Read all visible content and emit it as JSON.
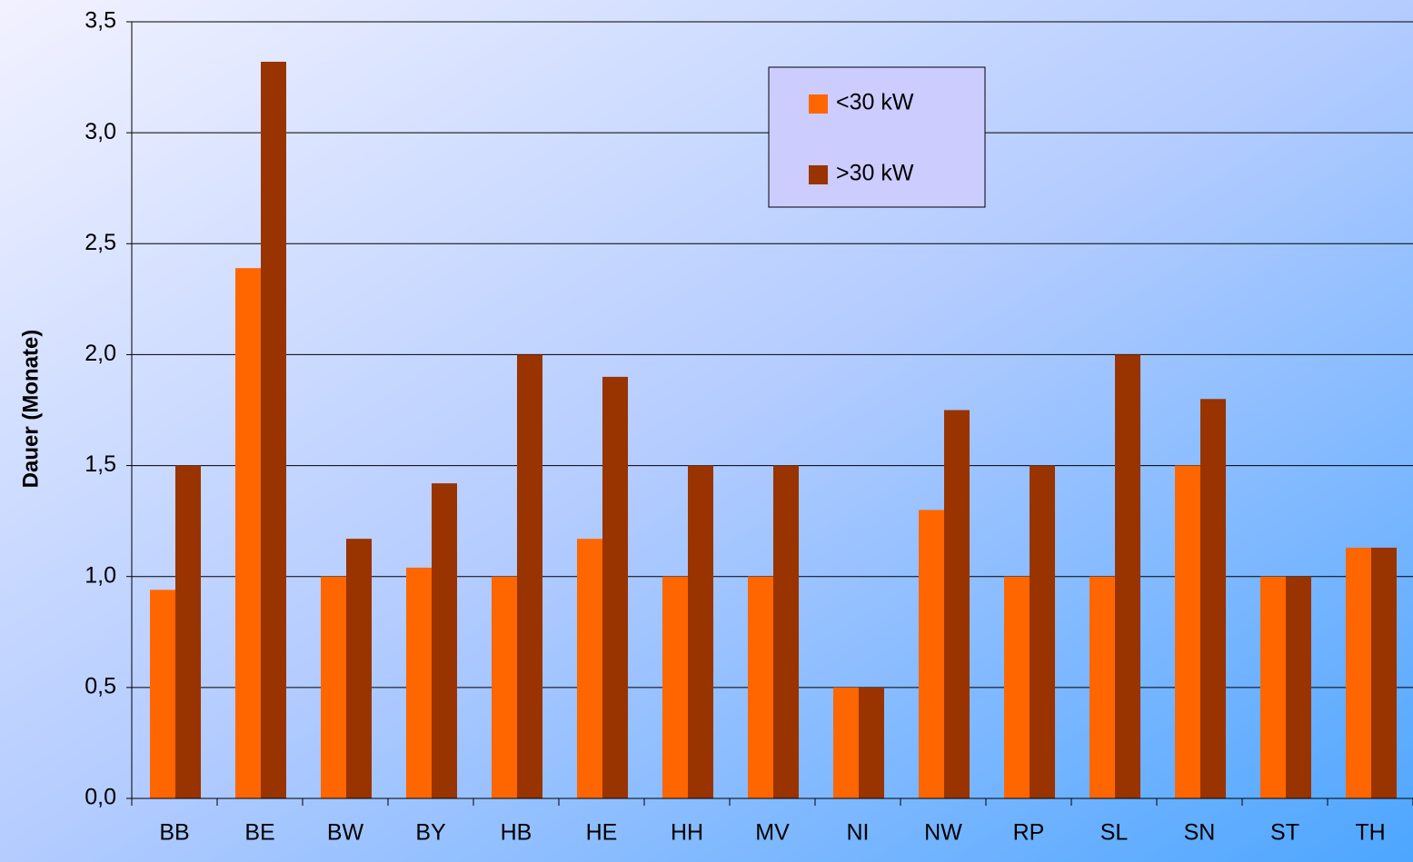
{
  "chart_data": {
    "type": "bar",
    "y_label": "Dauer (Monate)",
    "categories": [
      "BB",
      "BE",
      "BW",
      "BY",
      "HB",
      "HE",
      "HH",
      "MV",
      "NI",
      "NW",
      "RP",
      "SL",
      "SN",
      "ST",
      "TH"
    ],
    "series": [
      {
        "name": "<30 kW",
        "color": "#ff6600",
        "values": [
          0.94,
          2.39,
          1.0,
          1.04,
          1.0,
          1.17,
          1.0,
          1.0,
          0.5,
          1.3,
          1.0,
          1.0,
          1.5,
          1.0,
          1.13
        ]
      },
      {
        "name": ">30 kW",
        "color": "#993300",
        "values": [
          1.5,
          3.32,
          1.17,
          1.42,
          2.0,
          1.9,
          1.5,
          1.5,
          0.5,
          1.75,
          1.5,
          2.0,
          1.8,
          1.0,
          1.13
        ]
      }
    ],
    "ylim": [
      0,
      3.5
    ],
    "yticks": [
      {
        "value": 0,
        "label": "0,0"
      },
      {
        "value": 0.5,
        "label": "0,5"
      },
      {
        "value": 1,
        "label": "1,0"
      },
      {
        "value": 1.5,
        "label": "1,5"
      },
      {
        "value": 2,
        "label": "2,0"
      },
      {
        "value": 2.5,
        "label": "2,5"
      },
      {
        "value": 3,
        "label": "3,0"
      },
      {
        "value": 3.5,
        "label": "3,5"
      }
    ],
    "grid": true,
    "legend": "top-center"
  }
}
